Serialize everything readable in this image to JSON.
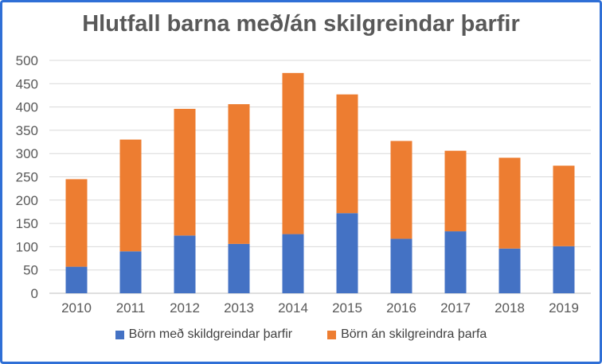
{
  "chart_data": {
    "type": "bar",
    "stacked": true,
    "title": "Hlutfall barna með/án skilgreindar þarfir",
    "categories": [
      "2010",
      "2011",
      "2012",
      "2013",
      "2014",
      "2015",
      "2016",
      "2017",
      "2018",
      "2019"
    ],
    "series": [
      {
        "name": "Börn með skildgreindar þarfir",
        "color": "#4472c4",
        "values": [
          57,
          90,
          124,
          106,
          127,
          172,
          117,
          133,
          96,
          101
        ]
      },
      {
        "name": "Börn án skilgreindra þarfa",
        "color": "#ed7d31",
        "values": [
          188,
          240,
          272,
          300,
          346,
          255,
          210,
          173,
          195,
          173
        ]
      }
    ],
    "ylim": [
      0,
      500
    ],
    "yticks": [
      "0",
      "50",
      "100",
      "150",
      "200",
      "250",
      "300",
      "350",
      "400",
      "450",
      "500"
    ],
    "grid": true,
    "legend_position": "bottom"
  }
}
